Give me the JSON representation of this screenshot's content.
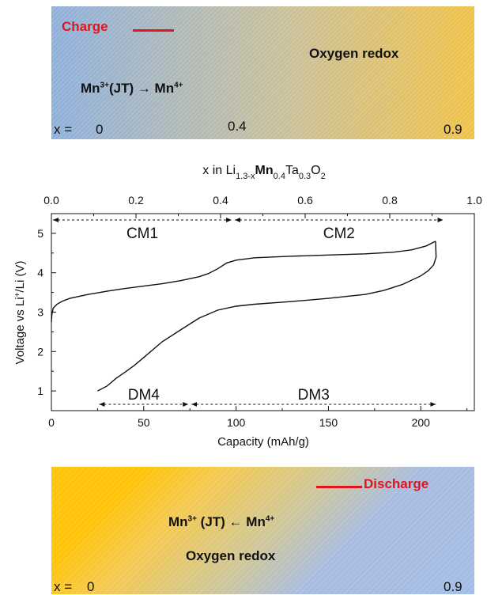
{
  "top_banner": {
    "label": "Charge",
    "process_high": "Oxygen redox",
    "process_low_left": "Mn",
    "process_low_sup1": "3+",
    "process_low_mid": "(JT) → Mn",
    "process_low_sup2": "4+",
    "x_prefix": "x =",
    "x_values": [
      "0",
      "0.4",
      "0.9"
    ]
  },
  "bottom_banner": {
    "label": "Discharge",
    "process_a_left": "Mn",
    "process_a_sup1": "3+",
    "process_a_mid": " (JT) ← Mn",
    "process_a_sup2": "4+",
    "process_b": "Oxygen redox",
    "x_prefix": "x =",
    "x_values": [
      "0",
      "0.9"
    ]
  },
  "chart_data": {
    "type": "line",
    "top_axis_label_pre": "x in Li",
    "top_axis_sub1": "1.3-x",
    "top_axis_bold": "Mn",
    "top_axis_sub2": "0.4",
    "top_axis_mid": "Ta",
    "top_axis_sub3": "0.3",
    "top_axis_end": "O",
    "top_axis_sub4": "2",
    "xlabel": "Capacity (mAh/g)",
    "ylabel_pre": "Voltage vs Li",
    "ylabel_sup": "+",
    "ylabel_post": "/Li (V)",
    "xlim": [
      0,
      229
    ],
    "ylim": [
      0.5,
      5.5
    ],
    "top_xlim": [
      0.0,
      1.0
    ],
    "x_ticks": [
      0,
      50,
      100,
      150,
      200
    ],
    "y_ticks": [
      1,
      2,
      3,
      4,
      5
    ],
    "top_ticks": [
      "0.0",
      "0.2",
      "0.4",
      "0.6",
      "0.8",
      "1.0"
    ],
    "grid": false,
    "series": [
      {
        "points": [
          [
            0.0,
            2.75
          ],
          [
            0.3,
            2.95
          ],
          [
            1,
            3.1
          ],
          [
            3,
            3.2
          ],
          [
            6,
            3.28
          ],
          [
            10,
            3.35
          ],
          [
            20,
            3.45
          ],
          [
            30,
            3.53
          ],
          [
            40,
            3.6
          ],
          [
            50,
            3.66
          ],
          [
            60,
            3.72
          ],
          [
            70,
            3.8
          ],
          [
            80,
            3.9
          ],
          [
            85,
            3.98
          ],
          [
            90,
            4.1
          ],
          [
            95,
            4.25
          ],
          [
            100,
            4.32
          ],
          [
            110,
            4.38
          ],
          [
            130,
            4.42
          ],
          [
            150,
            4.45
          ],
          [
            170,
            4.48
          ],
          [
            185,
            4.52
          ],
          [
            195,
            4.58
          ],
          [
            203,
            4.68
          ],
          [
            208,
            4.8
          ]
        ]
      },
      {
        "points": [
          [
            208,
            4.8
          ],
          [
            208.3,
            4.4
          ],
          [
            207,
            4.2
          ],
          [
            204,
            4.05
          ],
          [
            200,
            3.92
          ],
          [
            190,
            3.7
          ],
          [
            180,
            3.55
          ],
          [
            170,
            3.45
          ],
          [
            150,
            3.35
          ],
          [
            130,
            3.27
          ],
          [
            110,
            3.2
          ],
          [
            100,
            3.15
          ],
          [
            90,
            3.05
          ],
          [
            80,
            2.85
          ],
          [
            70,
            2.55
          ],
          [
            60,
            2.25
          ],
          [
            50,
            1.85
          ],
          [
            45,
            1.65
          ],
          [
            40,
            1.48
          ],
          [
            35,
            1.32
          ],
          [
            30,
            1.12
          ],
          [
            25,
            1.0
          ]
        ]
      }
    ],
    "regions": [
      {
        "label": "CM1",
        "x_start": 0.0,
        "x_end": 0.43,
        "axis": "top"
      },
      {
        "label": "CM2",
        "x_start": 0.43,
        "x_end": 0.93,
        "axis": "top"
      },
      {
        "label": "DM4",
        "x_start": 25,
        "x_end": 75,
        "axis": "bottom"
      },
      {
        "label": "DM3",
        "x_start": 75,
        "x_end": 209,
        "axis": "bottom"
      }
    ]
  }
}
